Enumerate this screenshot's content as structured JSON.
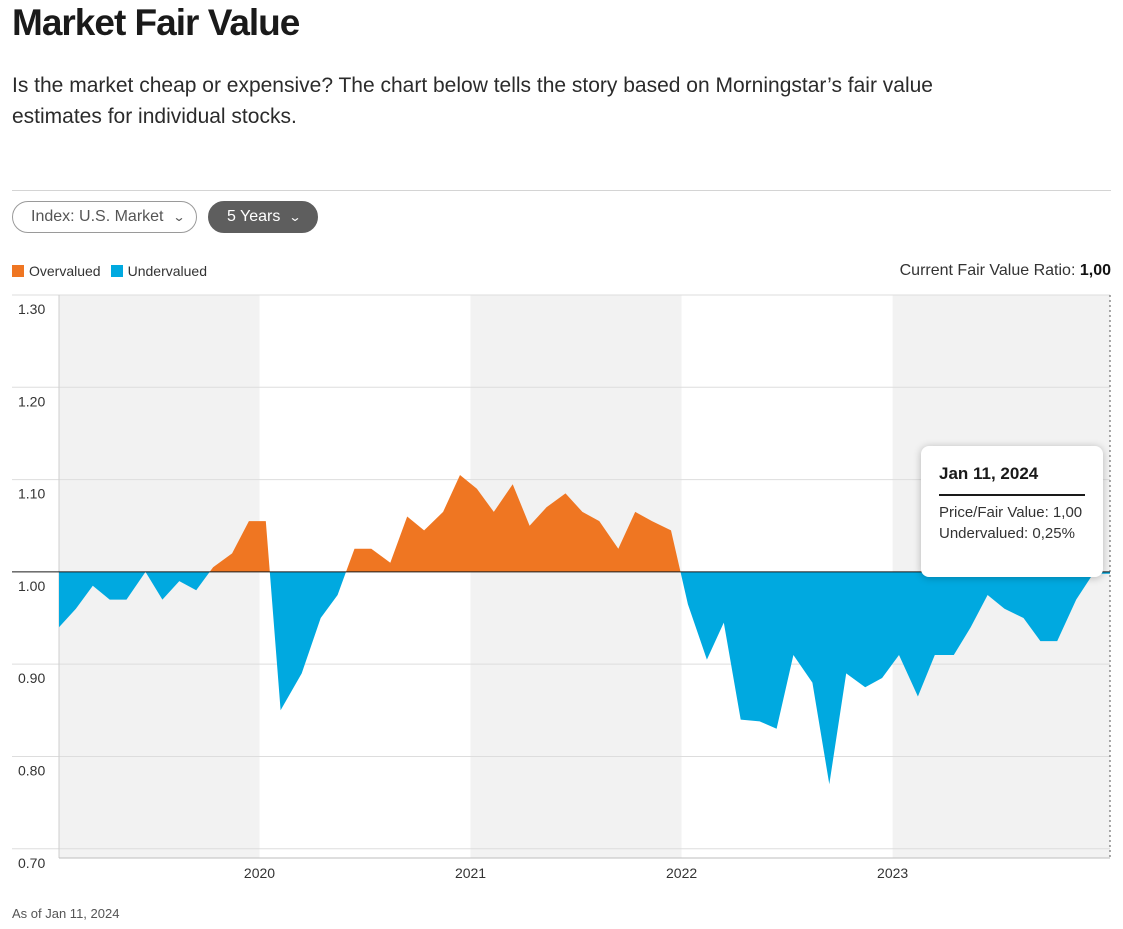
{
  "header": {
    "title": "Market Fair Value",
    "subtitle": "Is the market cheap or expensive? The chart below tells the story based on Morningstar’s fair value estimates for individual stocks."
  },
  "controls": {
    "index_label": "Index: U.S. Market",
    "period_label": "5 Years",
    "chevron": "⌄"
  },
  "legend": {
    "overvalued": "Overvalued",
    "undervalued": "Undervalued"
  },
  "current": {
    "label": "Current Fair Value Ratio:",
    "value": "1,00"
  },
  "tooltip": {
    "date": "Jan 11, 2024",
    "price_fair": "Price/Fair Value: 1,00",
    "undervalued": "Undervalued: 0,25%"
  },
  "footer": {
    "as_of": "As of Jan 11, 2024"
  },
  "colors": {
    "overvalued": "#EF7622",
    "undervalued": "#00A9E0",
    "band": "#F2F2F2",
    "grid": "#DDDDDD"
  },
  "chart_data": {
    "type": "area",
    "baseline": 1.0,
    "ylim": [
      0.69,
      1.3
    ],
    "xlim": [
      2019.05,
      2024.03
    ],
    "y_ticks": [
      1.3,
      1.2,
      1.1,
      1.0,
      0.9,
      0.8,
      0.7
    ],
    "y_tick_labels": [
      "1.30",
      "1.20",
      "1.10",
      "1.00",
      "0.90",
      "0.80",
      "0.70"
    ],
    "x_ticks": [
      2020,
      2021,
      2022,
      2023
    ],
    "x_tick_labels": [
      "2020",
      "2021",
      "2022",
      "2023"
    ],
    "shaded_years": [
      [
        2019.05,
        2020
      ],
      [
        2021,
        2022
      ],
      [
        2023,
        2024.03
      ]
    ],
    "series": [
      {
        "x": [
          2019.05,
          2019.13,
          2019.21,
          2019.29,
          2019.37,
          2019.46,
          2019.54,
          2019.62,
          2019.7,
          2019.78,
          2019.87,
          2019.95,
          2020.03,
          2020.1,
          2020.2,
          2020.29,
          2020.37,
          2020.45,
          2020.53,
          2020.62,
          2020.7,
          2020.78,
          2020.87,
          2020.95,
          2021.03,
          2021.11,
          2021.2,
          2021.28,
          2021.36,
          2021.45,
          2021.53,
          2021.61,
          2021.7,
          2021.78,
          2021.86,
          2021.95,
          2022.03,
          2022.12,
          2022.2,
          2022.28,
          2022.37,
          2022.45,
          2022.53,
          2022.62,
          2022.7,
          2022.78,
          2022.87,
          2022.95,
          2023.03,
          2023.12,
          2023.2,
          2023.29,
          2023.37,
          2023.45,
          2023.53,
          2023.62,
          2023.7,
          2023.78,
          2023.87,
          2023.95,
          2024.03
        ],
        "values": [
          0.94,
          0.96,
          0.985,
          0.97,
          0.97,
          1.0,
          0.97,
          0.99,
          0.98,
          1.005,
          1.02,
          1.055,
          1.055,
          0.85,
          0.89,
          0.95,
          0.975,
          1.025,
          1.025,
          1.01,
          1.06,
          1.045,
          1.065,
          1.105,
          1.09,
          1.065,
          1.095,
          1.05,
          1.07,
          1.085,
          1.065,
          1.055,
          1.025,
          1.065,
          1.055,
          1.045,
          0.965,
          0.905,
          0.945,
          0.84,
          0.838,
          0.83,
          0.91,
          0.88,
          0.77,
          0.89,
          0.875,
          0.885,
          0.91,
          0.865,
          0.91,
          0.91,
          0.94,
          0.975,
          0.96,
          0.95,
          0.925,
          0.925,
          0.97,
          0.998,
          0.998
        ]
      }
    ]
  }
}
